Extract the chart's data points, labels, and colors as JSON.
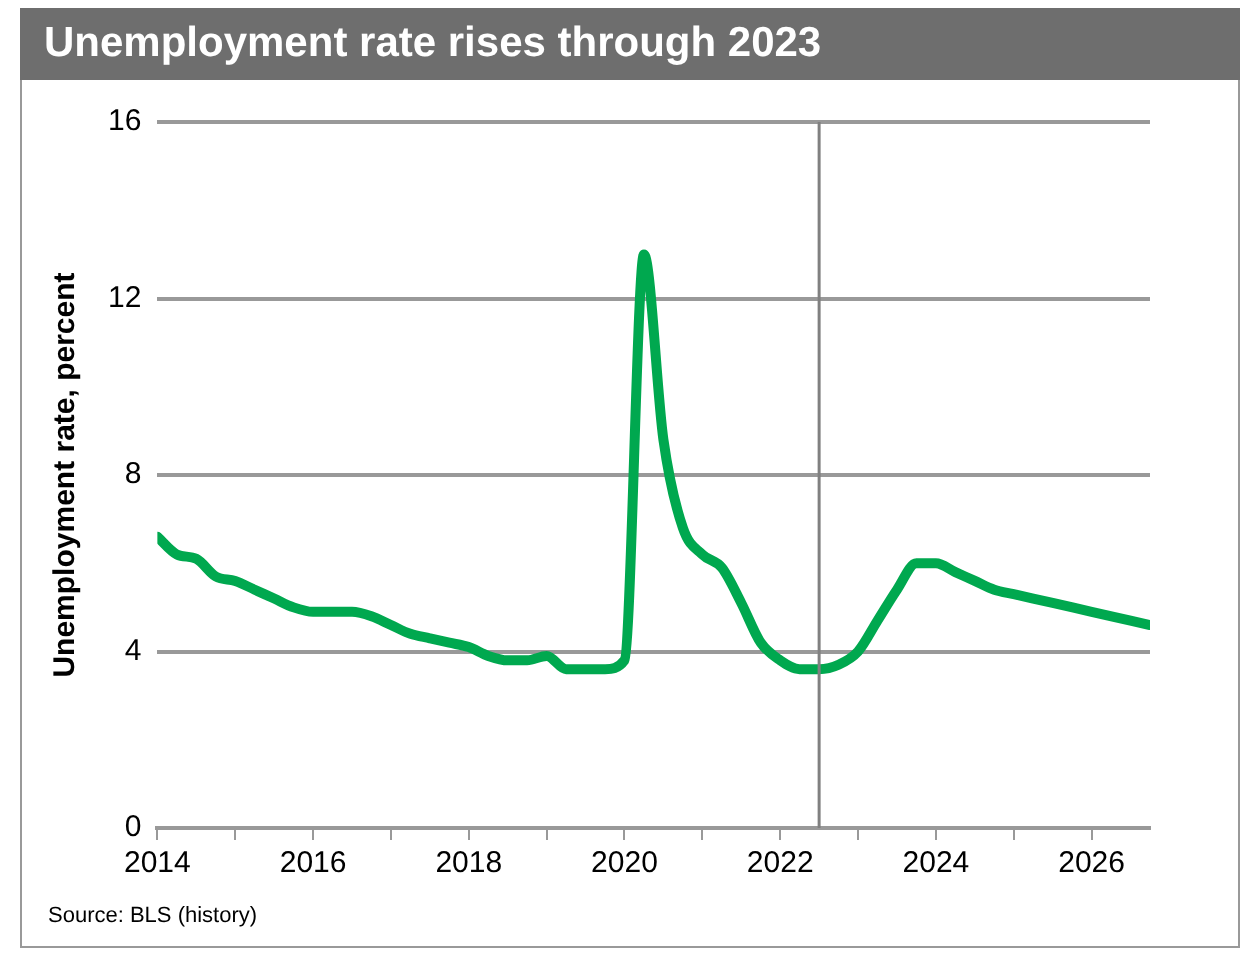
{
  "chart_data": {
    "type": "line",
    "title": "Unemployment rate rises through 2023",
    "ylabel": "Unemployment rate, percent",
    "annotations": [
      "Source: BLS (history)"
    ],
    "x": [
      2014,
      2014.25,
      2014.5,
      2014.75,
      2015,
      2015.25,
      2015.5,
      2015.75,
      2016,
      2016.25,
      2016.5,
      2016.75,
      2017,
      2017.25,
      2017.5,
      2017.75,
      2018,
      2018.25,
      2018.5,
      2018.75,
      2019,
      2019.25,
      2019.5,
      2019.75,
      2020,
      2020.25,
      2020.5,
      2020.75,
      2021,
      2021.25,
      2021.5,
      2021.75,
      2022,
      2022.25,
      2022.5,
      2022.75,
      2023,
      2023.25,
      2023.5,
      2023.75,
      2024,
      2024.25,
      2024.5,
      2024.75,
      2025,
      2025.5,
      2026,
      2026.5,
      2026.75
    ],
    "series": [
      {
        "color": "#00a84f",
        "values": [
          6.6,
          6.2,
          6.1,
          5.7,
          5.6,
          5.4,
          5.2,
          5.0,
          4.9,
          4.9,
          4.9,
          4.8,
          4.6,
          4.4,
          4.3,
          4.2,
          4.1,
          3.9,
          3.8,
          3.8,
          3.9,
          3.6,
          3.6,
          3.6,
          3.8,
          13.0,
          8.8,
          6.8,
          6.2,
          5.9,
          5.1,
          4.2,
          3.8,
          3.6,
          3.6,
          3.7,
          4.0,
          4.7,
          5.4,
          6.0,
          6.0,
          5.8,
          5.6,
          5.4,
          5.3,
          5.1,
          4.9,
          4.7,
          4.6
        ]
      }
    ],
    "xlim": [
      2014,
      2026.75
    ],
    "xticks": [
      2014,
      {
        "value": 2015,
        "label": null
      },
      2016,
      {
        "value": 2017,
        "label": null
      },
      2018,
      {
        "value": 2019,
        "label": null
      },
      2020,
      {
        "value": 2021,
        "label": null
      },
      2022,
      {
        "value": 2023,
        "label": null
      },
      2024,
      {
        "value": 2025,
        "label": null
      },
      2026
    ],
    "ylim": [
      0,
      16
    ],
    "yticks": [
      0,
      4,
      8,
      12,
      16
    ],
    "ref_lines": [
      {
        "axis": "x",
        "value": 2022.5,
        "color": "#808080"
      }
    ],
    "grid": "y",
    "legend": false,
    "marker": "none",
    "line_style": "solid"
  }
}
